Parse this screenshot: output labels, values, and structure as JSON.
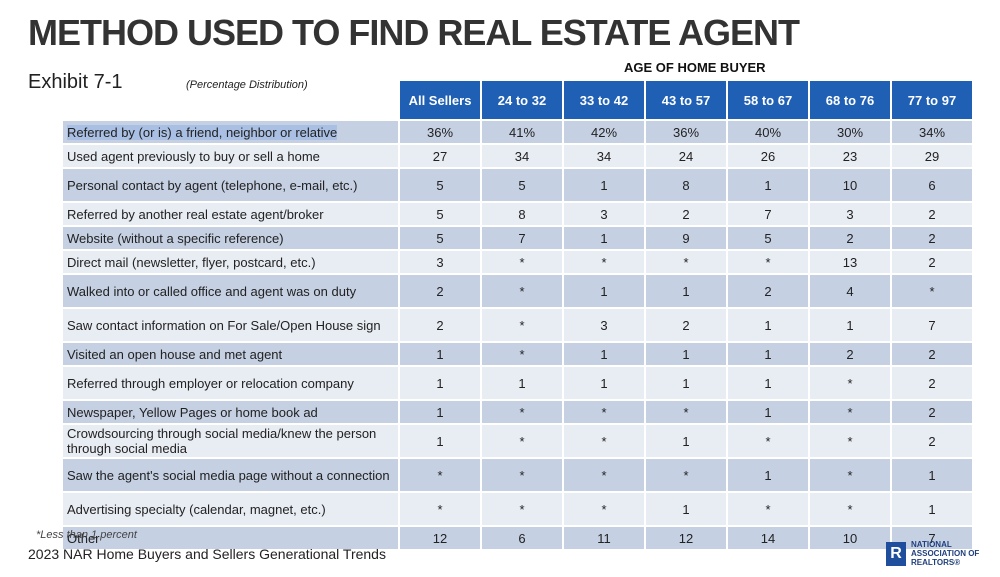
{
  "title": "METHOD USED TO FIND REAL ESTATE AGENT",
  "exhibit": "Exhibit 7-1",
  "subtitle": "(Percentage Distribution)",
  "group_header": "AGE OF HOME BUYER",
  "columns": [
    "All Sellers",
    "24 to 32",
    "33 to 42",
    "43 to 57",
    "58 to 67",
    "68 to 76",
    "77 to 97"
  ],
  "rows": [
    {
      "label": "Referred by (or is) a friend, neighbor or relative",
      "values": [
        "36%",
        "41%",
        "42%",
        "36%",
        "40%",
        "30%",
        "34%"
      ]
    },
    {
      "label": "Used agent previously to buy or sell a home",
      "values": [
        "27",
        "34",
        "34",
        "24",
        "26",
        "23",
        "29"
      ]
    },
    {
      "label": "Personal contact by agent (telephone, e-mail, etc.)",
      "values": [
        "5",
        "5",
        "1",
        "8",
        "1",
        "10",
        "6"
      ]
    },
    {
      "label": "Referred by another real estate agent/broker",
      "values": [
        "5",
        "8",
        "3",
        "2",
        "7",
        "3",
        "2"
      ]
    },
    {
      "label": "Website (without a specific reference)",
      "values": [
        "5",
        "7",
        "1",
        "9",
        "5",
        "2",
        "2"
      ]
    },
    {
      "label": "Direct mail (newsletter, flyer, postcard, etc.)",
      "values": [
        "3",
        "*",
        "*",
        "*",
        "*",
        "13",
        "2"
      ]
    },
    {
      "label": "Walked into or called office and agent was on duty",
      "values": [
        "2",
        "*",
        "1",
        "1",
        "2",
        "4",
        "*"
      ]
    },
    {
      "label": "Saw contact information on For Sale/Open House sign",
      "values": [
        "2",
        "*",
        "3",
        "2",
        "1",
        "1",
        "7"
      ]
    },
    {
      "label": "Visited an open house and met agent",
      "values": [
        "1",
        "*",
        "1",
        "1",
        "1",
        "2",
        "2"
      ]
    },
    {
      "label": "Referred through employer or relocation company",
      "values": [
        "1",
        "1",
        "1",
        "1",
        "1",
        "*",
        "2"
      ]
    },
    {
      "label": "Newspaper, Yellow Pages or home book ad",
      "values": [
        "1",
        "*",
        "*",
        "*",
        "1",
        "*",
        "2"
      ]
    },
    {
      "label": "Crowdsourcing through social media/knew the person through social media",
      "values": [
        "1",
        "*",
        "*",
        "1",
        "*",
        "*",
        "2"
      ]
    },
    {
      "label": "Saw the agent's social media page without a connection",
      "values": [
        "*",
        "*",
        "*",
        "*",
        "1",
        "*",
        "1"
      ]
    },
    {
      "label": "Advertising specialty (calendar, magnet, etc.)",
      "values": [
        "*",
        "*",
        "*",
        "1",
        "*",
        "*",
        "1"
      ]
    },
    {
      "label": "Other",
      "values": [
        "12",
        "6",
        "11",
        "12",
        "14",
        "10",
        "7"
      ]
    }
  ],
  "footnote": "*Less than 1 percent",
  "source": "2023 NAR Home Buyers and Sellers Generational Trends",
  "logo": {
    "mark": "R",
    "line1": "NATIONAL",
    "line2": "ASSOCIATION OF",
    "line3": "REALTORS®"
  },
  "colors": {
    "header_blue": "#1f5fb4",
    "row_dark": "#c5d0e3",
    "row_light": "#e8ecf3"
  }
}
